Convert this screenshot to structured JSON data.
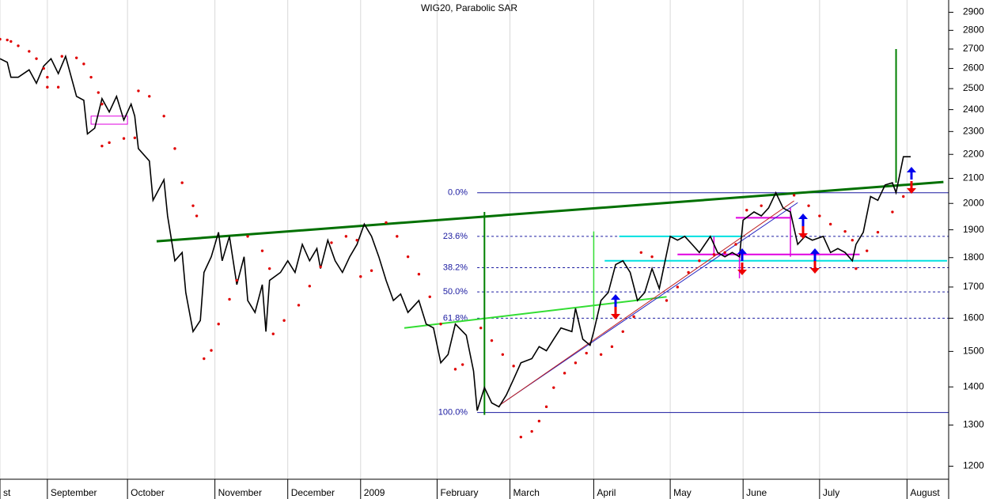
{
  "chart_data": {
    "type": "line",
    "title": "WIG20, Parabolic SAR",
    "log_scale": true,
    "grid": "x",
    "xlim": [
      0,
      260
    ],
    "ylim": [
      1170,
      2970
    ],
    "yticks": [
      1200,
      1300,
      1400,
      1500,
      1600,
      1700,
      1800,
      1900,
      2000,
      2100,
      2200,
      2300,
      2400,
      2500,
      2600,
      2700,
      2800,
      2900
    ],
    "xticks": [
      {
        "value": 0,
        "label": "st"
      },
      {
        "value": 13,
        "label": "September"
      },
      {
        "value": 35,
        "label": "October"
      },
      {
        "value": 59,
        "label": "November"
      },
      {
        "value": 79,
        "label": "December"
      },
      {
        "value": 99,
        "label": "2009"
      },
      {
        "value": 120,
        "label": "February"
      },
      {
        "value": 140,
        "label": "March"
      },
      {
        "value": 163,
        "label": "April"
      },
      {
        "value": 184,
        "label": "May"
      },
      {
        "value": 204,
        "label": "June"
      },
      {
        "value": 225,
        "label": "July"
      },
      {
        "value": 249,
        "label": "August"
      }
    ],
    "series": [
      {
        "color": "#000000",
        "marker": "line",
        "x": [
          0,
          2,
          3,
          5,
          8,
          10,
          12,
          14,
          16,
          18,
          21,
          23,
          24,
          26,
          28,
          30,
          32,
          34,
          36,
          37,
          38,
          41,
          42,
          45,
          46,
          48,
          50,
          51,
          53,
          55,
          56,
          58,
          60,
          61,
          63,
          65,
          67,
          68,
          70,
          72,
          73,
          74,
          77,
          79,
          81,
          83,
          85,
          87,
          88,
          90,
          92,
          94,
          96,
          98,
          100,
          102,
          104,
          106,
          108,
          110,
          112,
          115,
          117,
          119,
          121,
          123,
          125,
          128,
          130,
          131,
          133,
          135,
          137,
          139,
          141,
          143,
          146,
          148,
          150,
          152,
          154,
          157,
          158,
          160,
          162,
          163,
          165,
          167,
          169,
          171,
          173,
          175,
          177,
          179,
          181,
          184,
          186,
          188,
          190,
          192,
          195,
          197,
          199,
          201,
          203,
          204,
          207,
          209,
          211,
          213,
          215,
          217,
          219,
          221,
          223,
          226,
          228,
          230,
          232,
          234,
          235,
          237,
          239,
          241,
          243,
          245,
          246,
          248,
          250
        ],
        "values": [
          2650,
          2631,
          2556,
          2556,
          2593,
          2526,
          2612,
          2650,
          2574,
          2662,
          2463,
          2444,
          2289,
          2315,
          2452,
          2389,
          2463,
          2352,
          2426,
          2370,
          2225,
          2172,
          2012,
          2094,
          1952,
          1789,
          1818,
          1682,
          1559,
          1593,
          1749,
          1803,
          1891,
          1789,
          1876,
          1708,
          1803,
          1656,
          1618,
          1708,
          1559,
          1722,
          1749,
          1789,
          1749,
          1847,
          1789,
          1832,
          1762,
          1862,
          1789,
          1749,
          1803,
          1847,
          1921,
          1876,
          1803,
          1722,
          1656,
          1677,
          1618,
          1656,
          1582,
          1570,
          1467,
          1491,
          1582,
          1548,
          1444,
          1337,
          1398,
          1357,
          1347,
          1378,
          1421,
          1467,
          1479,
          1514,
          1502,
          1536,
          1570,
          1559,
          1631,
          1536,
          1518,
          1559,
          1656,
          1682,
          1776,
          1789,
          1749,
          1656,
          1682,
          1762,
          1695,
          1876,
          1862,
          1876,
          1847,
          1818,
          1876,
          1818,
          1803,
          1818,
          1803,
          1936,
          1967,
          1952,
          1982,
          2042,
          1982,
          1967,
          1847,
          1876,
          1862,
          1876,
          1818,
          1832,
          1818,
          1789,
          1847,
          1891,
          2027,
          2012,
          2073,
          2082,
          2042,
          2190,
          2190
        ]
      },
      {
        "color": "#e00000",
        "marker": "dot",
        "x": [
          0,
          2,
          3,
          5,
          8,
          10,
          12,
          13,
          13,
          16,
          17,
          21,
          23,
          25,
          27,
          28,
          28,
          30,
          34,
          37,
          38,
          41,
          45,
          48,
          50,
          53,
          54,
          56,
          58,
          60,
          63,
          65,
          68,
          72,
          74,
          75,
          78,
          82,
          85,
          88,
          91,
          95,
          98,
          99,
          102,
          106,
          109,
          112,
          115,
          118,
          121,
          125,
          127,
          132,
          135,
          138,
          141,
          143,
          146,
          148,
          150,
          152,
          155,
          158,
          161,
          165,
          168,
          171,
          174,
          176,
          179,
          183,
          186,
          189,
          192,
          196,
          199,
          202,
          205,
          209,
          218,
          222,
          225,
          228,
          232,
          234,
          235,
          238,
          241,
          245,
          248
        ],
        "values": [
          2752,
          2748,
          2740,
          2717,
          2688,
          2650,
          2600,
          2556,
          2507,
          2507,
          2662,
          2654,
          2623,
          2556,
          2481,
          2426,
          2236,
          2251,
          2269,
          2272,
          2489,
          2463,
          2370,
          2225,
          2082,
          1991,
          1952,
          1479,
          1503,
          1582,
          1660,
          1722,
          1876,
          1824,
          1762,
          1552,
          1593,
          1641,
          1703,
          1768,
          1853,
          1876,
          1862,
          1735,
          1755,
          1927,
          1876,
          1803,
          1743,
          1668,
          1582,
          1449,
          1462,
          1570,
          1532,
          1491,
          1458,
          1270,
          1284,
          1310,
          1347,
          1398,
          1438,
          1467,
          1495,
          1491,
          1514,
          1559,
          1605,
          1818,
          1803,
          1656,
          1700,
          1749,
          1789,
          1811,
          1818,
          1847,
          1974,
          1991,
          2032,
          1991,
          1952,
          1921,
          1894,
          1862,
          1762,
          1824,
          1891,
          1967,
          2027
        ]
      }
    ],
    "fibonacci": {
      "x0": 131,
      "color": "#1a1aa0",
      "levels": [
        {
          "label": "0.0%",
          "value": 2042,
          "style": "solid"
        },
        {
          "label": "23.6%",
          "value": 1876,
          "style": "dashed"
        },
        {
          "label": "38.2%",
          "value": 1765,
          "style": "dashed"
        },
        {
          "label": "50.0%",
          "value": 1684,
          "style": "dashed"
        },
        {
          "label": "61.8%",
          "value": 1600,
          "style": "dashed"
        },
        {
          "label": "100.0%",
          "value": 1332,
          "style": "solid"
        }
      ]
    },
    "lines": [
      {
        "x": [
          43,
          259
        ],
        "values": [
          1858,
          2085
        ],
        "color": "#007000",
        "width": 3
      },
      {
        "x": [
          111,
          183
        ],
        "values": [
          1570,
          1668
        ],
        "color": "#33dd33",
        "width": 2
      },
      {
        "x": [
          133,
          133
        ],
        "values": [
          1326,
          1967
        ],
        "color": "#008000",
        "width": 2
      },
      {
        "x": [
          163,
          163
        ],
        "values": [
          1595,
          1894
        ],
        "color": "#33dd33",
        "width": 1.5
      },
      {
        "x": [
          246,
          246
        ],
        "values": [
          2082,
          2700
        ],
        "color": "#008000",
        "width": 2
      },
      {
        "x": [
          166,
          260
        ],
        "values": [
          1789,
          1789
        ],
        "color": "#00e0e0",
        "width": 2
      },
      {
        "x": [
          170,
          204
        ],
        "values": [
          1876,
          1876
        ],
        "color": "#00e0e0",
        "width": 2
      },
      {
        "x": [
          186,
          236
        ],
        "values": [
          1811,
          1811
        ],
        "color": "#e000e0",
        "width": 2
      },
      {
        "x": [
          202,
          217
        ],
        "values": [
          1945,
          1945
        ],
        "color": "#e000e0",
        "width": 2
      },
      {
        "x": [
          217,
          217
        ],
        "values": [
          1982,
          1803
        ],
        "color": "#e000e0",
        "width": 1.5
      },
      {
        "x": [
          203,
          203
        ],
        "values": [
          1803,
          1729
        ],
        "color": "#e000e0",
        "width": 1.5
      },
      {
        "x": [
          196,
          196
        ],
        "values": [
          1876,
          1803
        ],
        "color": "#e000e0",
        "width": 1.5
      },
      {
        "x": [
          138,
          219
        ],
        "values": [
          1357,
          2003
        ],
        "color": "#2020c0",
        "width": 1
      },
      {
        "x": [
          137,
          218
        ],
        "values": [
          1350,
          2010
        ],
        "color": "#c02020",
        "width": 1
      }
    ],
    "boxes": [
      {
        "x": [
          25,
          35
        ],
        "values": [
          2370,
          2333
        ],
        "color": "#e000e0"
      }
    ]
  }
}
